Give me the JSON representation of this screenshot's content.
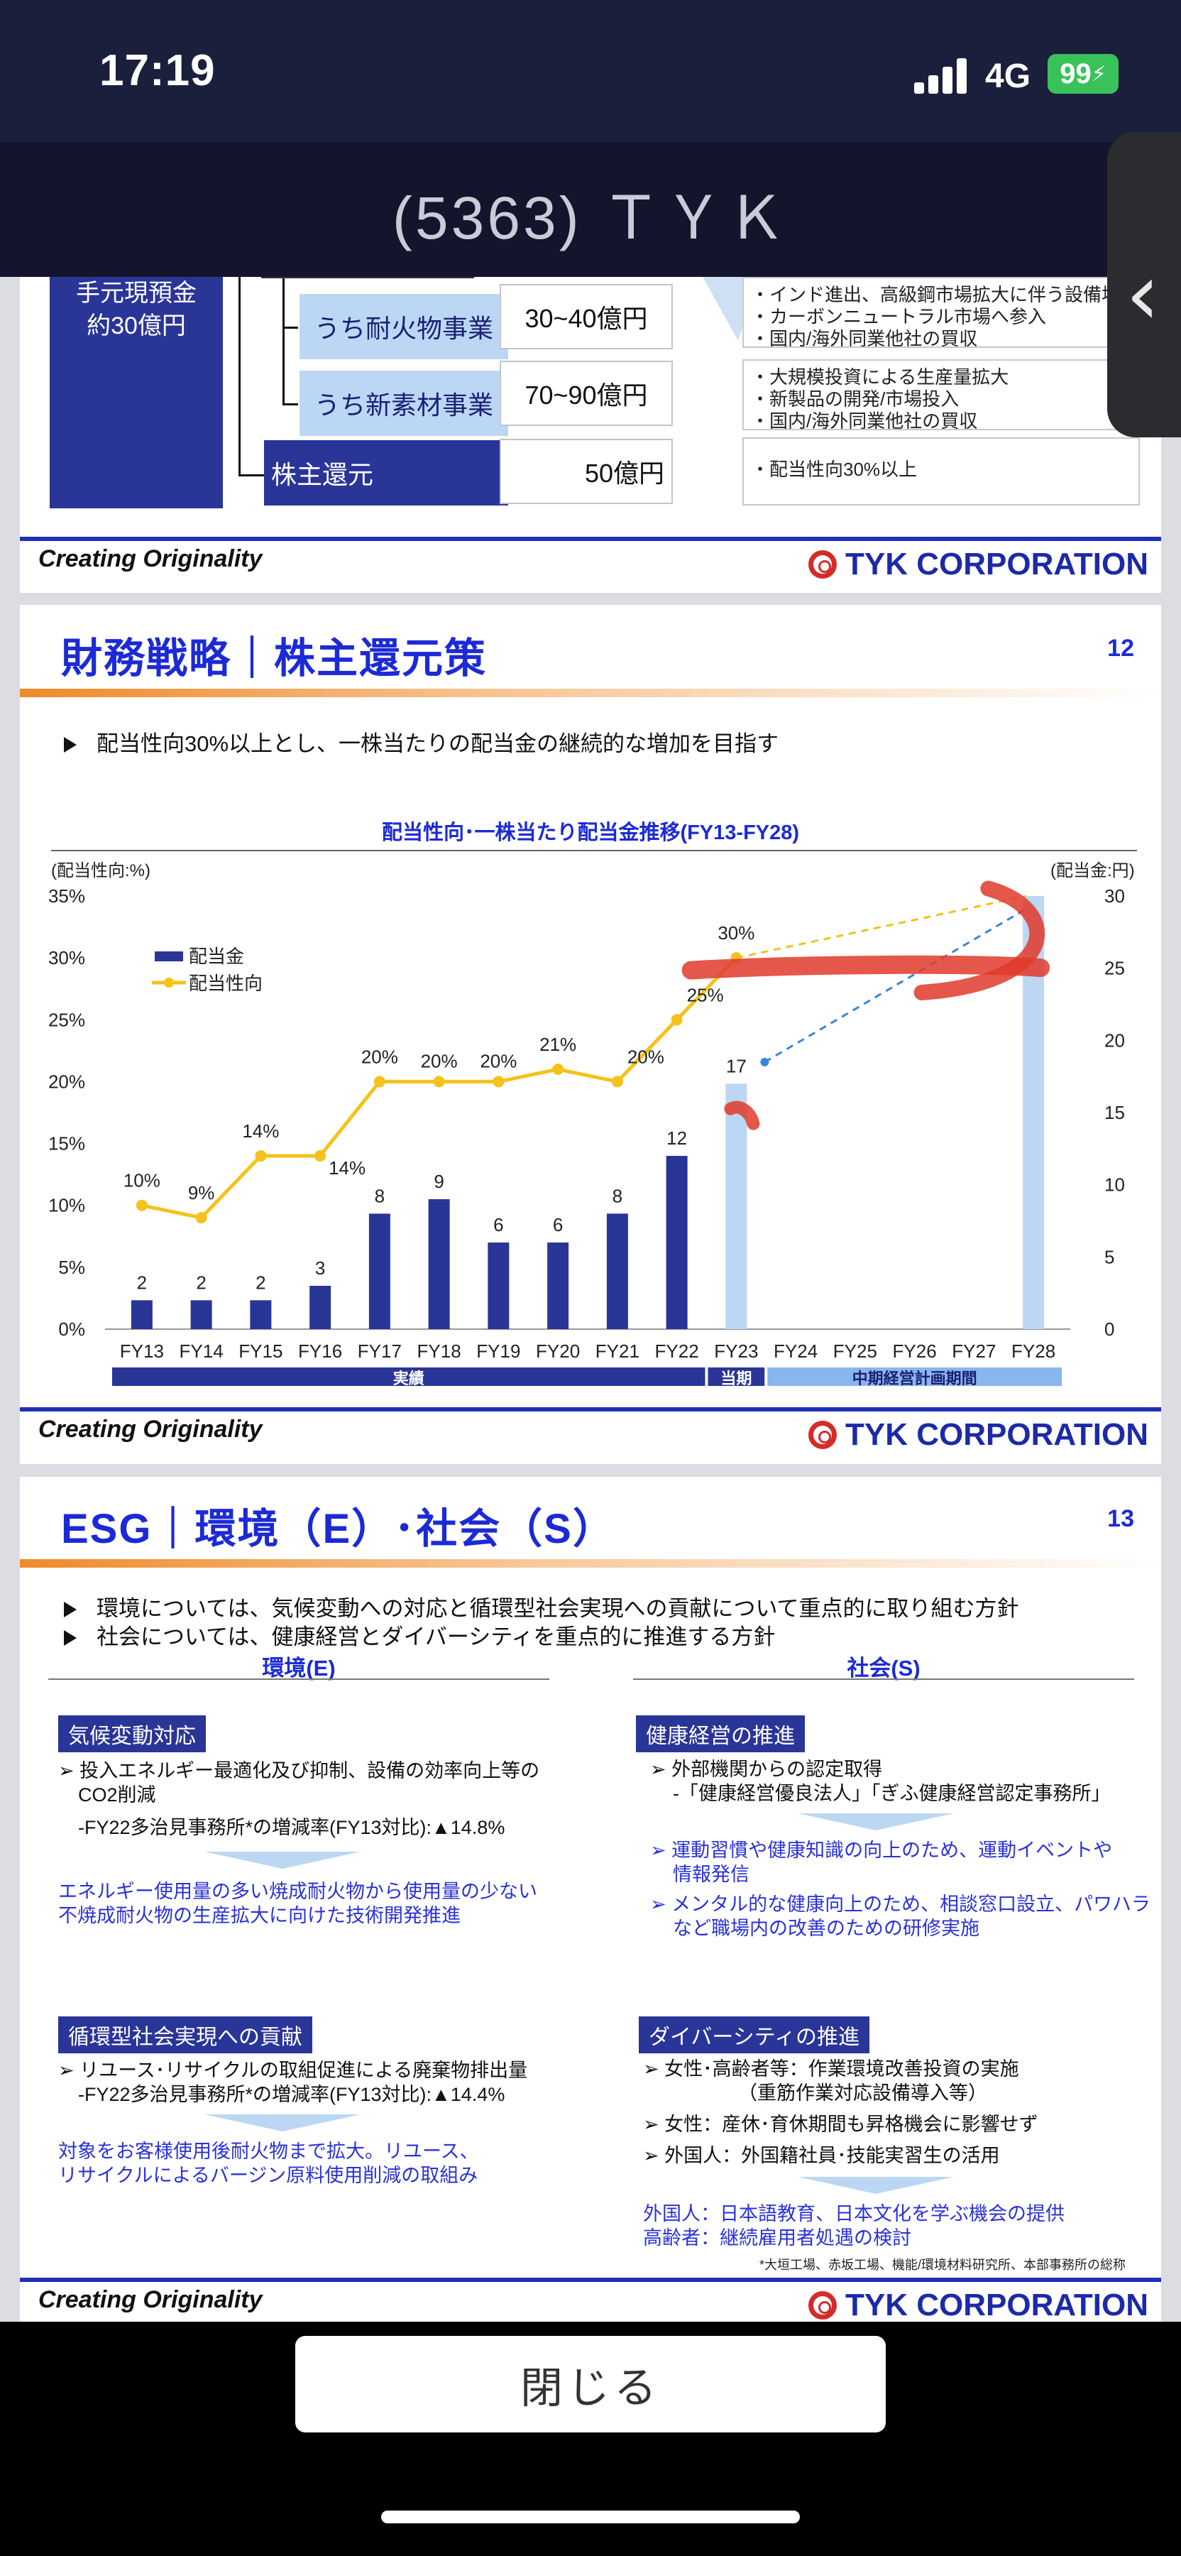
{
  "status": {
    "time": "17:19",
    "network": "4G",
    "battery": "99"
  },
  "header": {
    "title": "(5363) ＴＹＫ"
  },
  "slide1": {
    "cash_label_1": "手元現預金",
    "cash_label_2": "約30億円",
    "rows": [
      {
        "label": "うち耐火物事業",
        "value": "30~40億円",
        "notes": [
          "・インド進出、高級鋼市場拡大に伴う設備増強",
          "・カーボンニュートラル市場へ参入",
          "・国内/海外同業他社の買収"
        ]
      },
      {
        "label": "うち新素材事業",
        "value": "70~90億円",
        "notes": [
          "・大規模投資による生産量拡大",
          "・新製品の開発/市場投入",
          "・国内/海外同業他社の買収"
        ]
      },
      {
        "label": "株主還元",
        "value": "50億円",
        "notes": [
          "・配当性向30%以上"
        ]
      }
    ]
  },
  "footer": {
    "left": "Creating Originality",
    "right": "TYK CORPORATION"
  },
  "slide2": {
    "title": "財務戦略｜株主還元策",
    "page": "12",
    "bullet": "配当性向30%以上とし、一株当たりの配当金の継続的な増加を目指す"
  },
  "chart_data": {
    "type": "bar",
    "title": "配当性向･一株当たり配当金推移(FY13-FY28)",
    "ylabel_left": "(配当性向:%)",
    "ylabel_right": "(配当金:円)",
    "categories": [
      "FY13",
      "FY14",
      "FY15",
      "FY16",
      "FY17",
      "FY18",
      "FY19",
      "FY20",
      "FY21",
      "FY22",
      "FY23",
      "FY24",
      "FY25",
      "FY26",
      "FY27",
      "FY28"
    ],
    "yticks_left": [
      "0%",
      "5%",
      "10%",
      "15%",
      "20%",
      "25%",
      "30%",
      "35%"
    ],
    "yticks_right": [
      "0",
      "5",
      "10",
      "15",
      "20",
      "25",
      "30"
    ],
    "ylim_left": [
      0,
      35
    ],
    "ylim_right": [
      0,
      30
    ],
    "series": [
      {
        "name": "配当金",
        "axis": "right",
        "values": [
          2,
          2,
          2,
          3,
          8,
          9,
          6,
          6,
          8,
          12,
          17,
          null,
          null,
          null,
          null,
          30
        ],
        "labels": [
          "2",
          "2",
          "2",
          "3",
          "8",
          "9",
          "6",
          "6",
          "8",
          "12",
          "17",
          "",
          "",
          "",
          "",
          ""
        ]
      },
      {
        "name": "配当性向",
        "axis": "left",
        "values": [
          10,
          9,
          14,
          14,
          20,
          20,
          20,
          21,
          20,
          25,
          30,
          null,
          null,
          null,
          null,
          null
        ],
        "labels": [
          "10%",
          "9%",
          "14%",
          "14%",
          "20%",
          "20%",
          "20%",
          "21%",
          "20%",
          "25%",
          "30%",
          "",
          "",
          "",
          "",
          ""
        ]
      }
    ],
    "legend": "top-left",
    "bands": [
      {
        "label": "実績",
        "from": "FY13",
        "to": "FY22"
      },
      {
        "label": "当期",
        "from": "FY23",
        "to": "FY23"
      },
      {
        "label": "中期経営計画期間",
        "from": "FY24",
        "to": "FY28"
      }
    ],
    "colors": {
      "bar": "#2a3598",
      "bar_light": "#bcd7f3",
      "line": "#f5c21b",
      "trend": "#3a86d6",
      "band_dark": "#2a3598",
      "band_light": "#8ab6ee",
      "mark": "#e0392a"
    }
  },
  "slide3": {
    "title": "ESG｜環境（E）･社会（S）",
    "page": "13",
    "bullets": [
      "環境については、気候変動への対応と循環型社会実現への貢献について重点的に取り組む方針",
      "社会については、健康経営とダイバーシティを重点的に推進する方針"
    ],
    "env_head": "環境(E)",
    "soc_head": "社会(S)",
    "env": {
      "tag1": "気候変動対応",
      "tag1_items": [
        "➢ 投入エネルギー最適化及び抑制、設備の効率向上等の",
        "CO2削減",
        "-FY22多治見事務所*の増減率(FY13対比):▲14.8%"
      ],
      "tag1_result": [
        "エネルギー使用量の多い焼成耐火物から使用量の少ない",
        "不焼成耐火物の生産拡大に向けた技術開発推進"
      ],
      "tag2": "循環型社会実現への貢献",
      "tag2_items": [
        "➢ リユース･リサイクルの取組促進による廃棄物排出量",
        "-FY22多治見事務所*の増減率(FY13対比):▲14.4%"
      ],
      "tag2_result": [
        "対象をお客様使用後耐火物まで拡大。リユース、",
        "リサイクルによるバージン原料使用削減の取組み"
      ]
    },
    "soc": {
      "tag1": "健康経営の推進",
      "tag1_items": [
        "➢ 外部機関からの認定取得",
        "-「健康経営優良法人」「ぎふ健康経営認定事務所」"
      ],
      "tag1_result": [
        "➢ 運動習慣や健康知識の向上のため、運動イベントや",
        "情報発信",
        "➢ メンタル的な健康向上のため、相談窓口設立、パワハラ",
        "など職場内の改善のための研修実施"
      ],
      "tag2": "ダイバーシティの推進",
      "tag2_items": [
        "➢ 女性･高齢者等：作業環境改善投資の実施",
        "（重筋作業対応設備導入等）",
        "➢ 女性：産休･育休期間も昇格機会に影響せず",
        "➢ 外国人：外国籍社員･技能実習生の活用"
      ],
      "tag2_result": [
        "外国人：日本語教育、日本文化を学ぶ機会の提供",
        "高齢者：継続雇用者処遇の検討"
      ],
      "note": "*大垣工場、赤坂工場、機能/環境材料研究所、本部事務所の総称"
    }
  },
  "bottom": {
    "close_label": "閉じる"
  }
}
